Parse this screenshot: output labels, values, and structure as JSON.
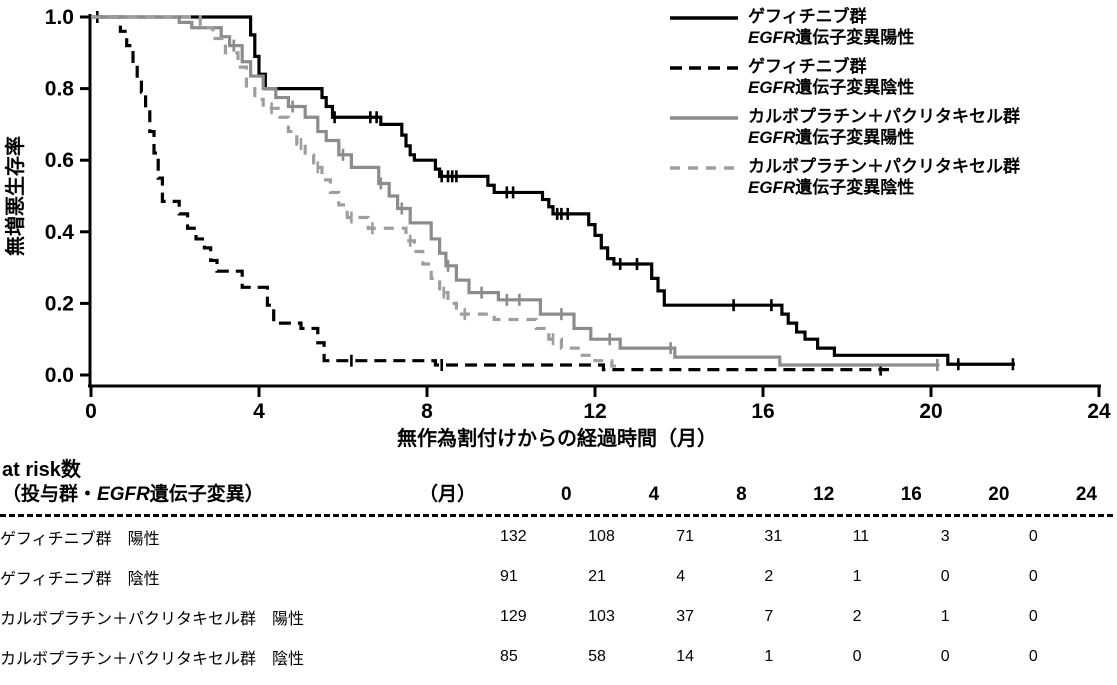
{
  "figure": {
    "at_risk_title": "at risk数",
    "at_risk_header_prefix": "（投与群・",
    "at_risk_header_italic": "EGFR",
    "at_risk_header_suffix": "遺伝子変異）",
    "month_header": "（月）"
  },
  "chart_data": {
    "type": "line",
    "subtype": "kaplan-meier-step",
    "title": "",
    "xlabel": "無作為割付けからの経過時間（月）",
    "ylabel": "無増悪生存率",
    "xlim": [
      0,
      24
    ],
    "ylim": [
      0.0,
      1.0
    ],
    "x_ticks": [
      "0",
      "4",
      "8",
      "12",
      "16",
      "20",
      "24"
    ],
    "x_tick_values": [
      0,
      4,
      8,
      12,
      16,
      20,
      24
    ],
    "y_ticks": [
      "1.0",
      "0.8",
      "0.6",
      "0.4",
      "0.2",
      "0.0"
    ],
    "y_tick_values": [
      1.0,
      0.8,
      0.6,
      0.4,
      0.2,
      0.0
    ],
    "grid": false,
    "legend_position": "upper right",
    "colors": {
      "black": "#000000",
      "gray_solid": "#8c8c8c",
      "gray_dashed": "#9e9e9e"
    },
    "series": [
      {
        "name": "ゲフィチニブ群 EGFR遺伝子変異陽性",
        "legend_line1": "ゲフィチニブ群",
        "legend_italic": "EGFR",
        "legend_line2": "遺伝子変異陽性",
        "color": "#000000",
        "line_style": "solid",
        "points": [
          [
            0,
            1.0
          ],
          [
            3.8,
            0.95
          ],
          [
            3.9,
            0.89
          ],
          [
            4.0,
            0.84
          ],
          [
            4.15,
            0.8
          ],
          [
            5.5,
            0.775
          ],
          [
            5.6,
            0.75
          ],
          [
            5.75,
            0.72
          ],
          [
            6.9,
            0.7
          ],
          [
            7.4,
            0.67
          ],
          [
            7.5,
            0.64
          ],
          [
            7.6,
            0.615
          ],
          [
            7.7,
            0.6
          ],
          [
            8.2,
            0.575
          ],
          [
            8.3,
            0.555
          ],
          [
            9.45,
            0.53
          ],
          [
            9.6,
            0.51
          ],
          [
            10.75,
            0.49
          ],
          [
            10.9,
            0.47
          ],
          [
            11.0,
            0.45
          ],
          [
            11.85,
            0.42
          ],
          [
            12.0,
            0.39
          ],
          [
            12.15,
            0.355
          ],
          [
            12.3,
            0.325
          ],
          [
            12.45,
            0.31
          ],
          [
            13.35,
            0.27
          ],
          [
            13.5,
            0.235
          ],
          [
            13.65,
            0.195
          ],
          [
            16.45,
            0.17
          ],
          [
            16.6,
            0.145
          ],
          [
            16.8,
            0.12
          ],
          [
            17.0,
            0.1
          ],
          [
            17.3,
            0.075
          ],
          [
            17.7,
            0.055
          ],
          [
            20.4,
            0.03
          ],
          [
            22.0,
            0.03
          ]
        ],
        "censors": [
          [
            0.15,
            1.0
          ],
          [
            5.8,
            0.72
          ],
          [
            6.65,
            0.72
          ],
          [
            6.8,
            0.72
          ],
          [
            8.35,
            0.555
          ],
          [
            8.5,
            0.555
          ],
          [
            8.6,
            0.555
          ],
          [
            8.7,
            0.555
          ],
          [
            9.9,
            0.51
          ],
          [
            10.05,
            0.51
          ],
          [
            11.1,
            0.45
          ],
          [
            11.2,
            0.45
          ],
          [
            11.35,
            0.45
          ],
          [
            12.6,
            0.31
          ],
          [
            13.0,
            0.31
          ],
          [
            15.3,
            0.195
          ],
          [
            16.2,
            0.195
          ],
          [
            20.65,
            0.03
          ],
          [
            21.95,
            0.03
          ]
        ]
      },
      {
        "name": "ゲフィチニブ群 EGFR遺伝子変異陰性",
        "legend_line1": "ゲフィチニブ群",
        "legend_italic": "EGFR",
        "legend_line2": "遺伝子変異陰性",
        "color": "#000000",
        "line_style": "dashed",
        "points": [
          [
            0,
            1.0
          ],
          [
            0.7,
            0.96
          ],
          [
            0.85,
            0.92
          ],
          [
            1.0,
            0.87
          ],
          [
            1.1,
            0.83
          ],
          [
            1.2,
            0.79
          ],
          [
            1.3,
            0.74
          ],
          [
            1.4,
            0.68
          ],
          [
            1.5,
            0.62
          ],
          [
            1.6,
            0.55
          ],
          [
            1.7,
            0.485
          ],
          [
            2.1,
            0.45
          ],
          [
            2.3,
            0.41
          ],
          [
            2.5,
            0.38
          ],
          [
            2.7,
            0.355
          ],
          [
            2.85,
            0.32
          ],
          [
            3.0,
            0.29
          ],
          [
            3.6,
            0.245
          ],
          [
            4.2,
            0.195
          ],
          [
            4.35,
            0.145
          ],
          [
            5.0,
            0.13
          ],
          [
            5.4,
            0.09
          ],
          [
            5.55,
            0.04
          ],
          [
            8.2,
            0.028
          ],
          [
            12.2,
            0.015
          ],
          [
            19.0,
            0.015
          ]
        ],
        "censors": [
          [
            6.2,
            0.04
          ],
          [
            8.35,
            0.028
          ],
          [
            18.8,
            0.015
          ]
        ]
      },
      {
        "name": "カルボプラチン＋パクリタキセル群 EGFR遺伝子変異陽性",
        "legend_line1": "カルボプラチン＋パクリタキセル群",
        "legend_italic": "EGFR",
        "legend_line2": "遺伝子変異陽性",
        "color": "#8c8c8c",
        "line_style": "solid",
        "points": [
          [
            0,
            1.0
          ],
          [
            2.1,
            0.985
          ],
          [
            2.4,
            0.97
          ],
          [
            3.1,
            0.945
          ],
          [
            3.3,
            0.92
          ],
          [
            3.6,
            0.875
          ],
          [
            3.8,
            0.835
          ],
          [
            4.1,
            0.8
          ],
          [
            4.4,
            0.775
          ],
          [
            4.7,
            0.75
          ],
          [
            5.1,
            0.72
          ],
          [
            5.4,
            0.68
          ],
          [
            5.6,
            0.655
          ],
          [
            5.9,
            0.615
          ],
          [
            6.2,
            0.58
          ],
          [
            6.85,
            0.535
          ],
          [
            7.1,
            0.5
          ],
          [
            7.3,
            0.465
          ],
          [
            7.6,
            0.425
          ],
          [
            8.1,
            0.38
          ],
          [
            8.3,
            0.34
          ],
          [
            8.45,
            0.305
          ],
          [
            8.7,
            0.265
          ],
          [
            9.0,
            0.23
          ],
          [
            9.7,
            0.21
          ],
          [
            10.7,
            0.17
          ],
          [
            11.5,
            0.13
          ],
          [
            11.9,
            0.1
          ],
          [
            12.6,
            0.075
          ],
          [
            13.9,
            0.05
          ],
          [
            16.4,
            0.028
          ],
          [
            20.2,
            0.028
          ]
        ],
        "censors": [
          [
            3.4,
            0.92
          ],
          [
            4.8,
            0.75
          ],
          [
            6.0,
            0.615
          ],
          [
            6.9,
            0.535
          ],
          [
            7.4,
            0.465
          ],
          [
            8.5,
            0.305
          ],
          [
            9.3,
            0.23
          ],
          [
            9.9,
            0.21
          ],
          [
            10.2,
            0.21
          ],
          [
            11.2,
            0.17
          ],
          [
            12.35,
            0.1
          ],
          [
            13.8,
            0.075
          ],
          [
            20.15,
            0.028
          ]
        ]
      },
      {
        "name": "カルボプラチン＋パクリタキセル群 EGFR遺伝子変異陰性",
        "legend_line1": "カルボプラチン＋パクリタキセル群",
        "legend_italic": "EGFR",
        "legend_line2": "遺伝子変異陰性",
        "color": "#9e9e9e",
        "line_style": "dashed",
        "points": [
          [
            0,
            1.0
          ],
          [
            2.6,
            0.97
          ],
          [
            2.9,
            0.94
          ],
          [
            3.2,
            0.9
          ],
          [
            3.5,
            0.86
          ],
          [
            3.7,
            0.8
          ],
          [
            3.9,
            0.77
          ],
          [
            4.1,
            0.745
          ],
          [
            4.5,
            0.72
          ],
          [
            4.7,
            0.68
          ],
          [
            4.9,
            0.645
          ],
          [
            5.1,
            0.615
          ],
          [
            5.3,
            0.58
          ],
          [
            5.5,
            0.545
          ],
          [
            5.7,
            0.51
          ],
          [
            5.9,
            0.475
          ],
          [
            6.1,
            0.44
          ],
          [
            6.6,
            0.41
          ],
          [
            7.5,
            0.375
          ],
          [
            7.7,
            0.345
          ],
          [
            7.9,
            0.31
          ],
          [
            8.1,
            0.27
          ],
          [
            8.3,
            0.23
          ],
          [
            8.5,
            0.2
          ],
          [
            8.7,
            0.17
          ],
          [
            9.6,
            0.155
          ],
          [
            10.6,
            0.13
          ],
          [
            10.9,
            0.1
          ],
          [
            11.2,
            0.075
          ],
          [
            11.6,
            0.055
          ],
          [
            12.0,
            0.04
          ],
          [
            12.4,
            0.025
          ],
          [
            12.6,
            0.025
          ]
        ],
        "censors": [
          [
            4.3,
            0.745
          ],
          [
            5.0,
            0.645
          ],
          [
            5.4,
            0.58
          ],
          [
            6.2,
            0.44
          ],
          [
            6.7,
            0.41
          ],
          [
            7.6,
            0.375
          ],
          [
            8.4,
            0.23
          ],
          [
            8.9,
            0.17
          ],
          [
            11.0,
            0.1
          ]
        ]
      }
    ],
    "at_risk": {
      "months": [
        "0",
        "4",
        "8",
        "12",
        "16",
        "20",
        "24"
      ],
      "rows": [
        {
          "label": "ゲフィチニブ群　陽性",
          "counts": [
            "132",
            "108",
            "71",
            "31",
            "11",
            "3",
            "0"
          ]
        },
        {
          "label": "ゲフィチニブ群　陰性",
          "counts": [
            "91",
            "21",
            "4",
            "2",
            "1",
            "0",
            "0"
          ]
        },
        {
          "label": "カルボプラチン＋パクリタキセル群　陽性",
          "counts": [
            "129",
            "103",
            "37",
            "7",
            "2",
            "1",
            "0"
          ]
        },
        {
          "label": "カルボプラチン＋パクリタキセル群　陰性",
          "counts": [
            "85",
            "58",
            "14",
            "1",
            "0",
            "0",
            "0"
          ]
        }
      ]
    }
  }
}
